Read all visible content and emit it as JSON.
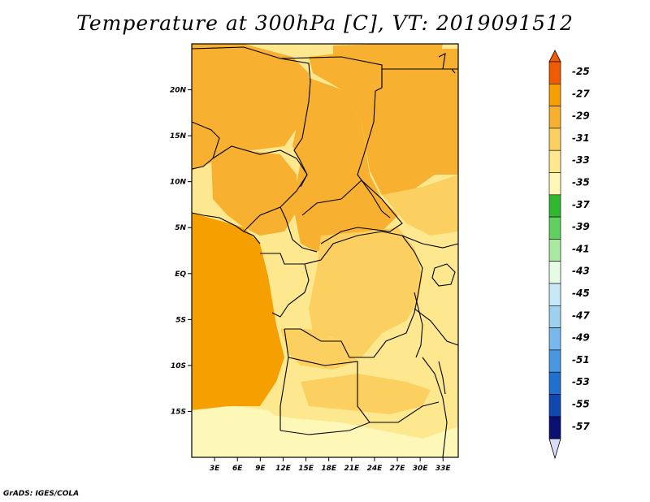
{
  "title": "Temperature at 300hPa [C], VT: 2019091512",
  "credit": "GrADS: IGES/COLA",
  "map": {
    "lon_range": [
      0,
      35
    ],
    "lat_range": [
      -20,
      25
    ],
    "x_ticks": [
      {
        "lon": 3,
        "label": "3E"
      },
      {
        "lon": 6,
        "label": "6E"
      },
      {
        "lon": 9,
        "label": "9E"
      },
      {
        "lon": 12,
        "label": "12E"
      },
      {
        "lon": 15,
        "label": "15E"
      },
      {
        "lon": 18,
        "label": "18E"
      },
      {
        "lon": 21,
        "label": "21E"
      },
      {
        "lon": 24,
        "label": "24E"
      },
      {
        "lon": 27,
        "label": "27E"
      },
      {
        "lon": 30,
        "label": "30E"
      },
      {
        "lon": 33,
        "label": "33E"
      }
    ],
    "y_ticks": [
      {
        "lat": 20,
        "label": "20N"
      },
      {
        "lat": 15,
        "label": "15N"
      },
      {
        "lat": 10,
        "label": "10N"
      },
      {
        "lat": 5,
        "label": "5N"
      },
      {
        "lat": 0,
        "label": "EQ"
      },
      {
        "lat": -5,
        "label": "5S"
      },
      {
        "lat": -10,
        "label": "10S"
      },
      {
        "lat": -15,
        "label": "15S"
      }
    ]
  },
  "colorbar": {
    "labels": [
      "-25",
      "-27",
      "-29",
      "-31",
      "-33",
      "-35",
      "-37",
      "-39",
      "-41",
      "-43",
      "-45",
      "-47",
      "-49",
      "-51",
      "-53",
      "-55",
      "-57"
    ],
    "colors": [
      "#f05a00",
      "#f5a000",
      "#f8b030",
      "#fbd060",
      "#fde890",
      "#fef8b8",
      "#30b830",
      "#60d060",
      "#a8e8a0",
      "#e6fae6",
      "#c8e8f8",
      "#a0d0f0",
      "#78b8ec",
      "#4898e0",
      "#2070d0",
      "#1048b0",
      "#0a1070",
      "#dcdcf8"
    ],
    "top_triangle_color": "#f05a00",
    "bottom_triangle_color": "#dcdcf8"
  },
  "fill_colors": {
    "light": "#fde890",
    "palest": "#fef8b8",
    "mid": "#fbd060",
    "warm": "#f8b030",
    "warmest": "#f5a000"
  },
  "regions": [
    {
      "name": "warm-region-north-east",
      "level": "warm"
    },
    {
      "name": "warm-region-central",
      "level": "warm"
    },
    {
      "name": "warm-region-west",
      "level": "warm"
    },
    {
      "name": "warm-region-congo",
      "level": "warm"
    },
    {
      "name": "warm-region-angola-strip",
      "level": "warm"
    },
    {
      "name": "warmest-region-north",
      "level": "warmest"
    },
    {
      "name": "mid-region-north-west",
      "level": "mid"
    },
    {
      "name": "mid-region-ocean",
      "level": "mid"
    },
    {
      "name": "mid-region-south",
      "level": "mid"
    },
    {
      "name": "mid-region-south-west",
      "level": "mid"
    },
    {
      "name": "pale-region-south",
      "level": "palest"
    },
    {
      "name": "pale-region-east",
      "level": "palest"
    }
  ]
}
